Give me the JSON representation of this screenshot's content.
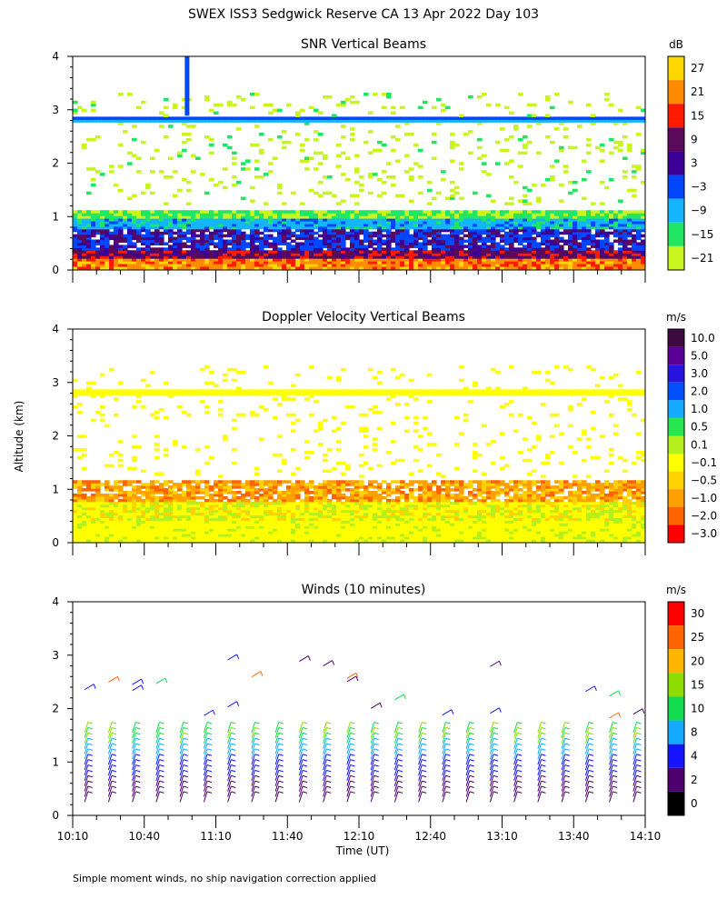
{
  "figure": {
    "title": "SWEX ISS3 Sedgwick Reserve CA  13 Apr 2022 Day 103",
    "ylabel": "Altitude (km)",
    "xlabel": "Time (UT)",
    "footnote": "Simple moment winds, no ship navigation correction applied"
  },
  "chart_data": [
    {
      "type": "heatmap",
      "title": "SNR Vertical Beams",
      "ylim": [
        0,
        4
      ],
      "yticks": [
        "0",
        "1",
        "2",
        "3",
        "4"
      ],
      "xlim": [
        "10:10",
        "14:10"
      ],
      "colorbar": {
        "unit": "dB",
        "labels": [
          "27",
          "21",
          "15",
          "9",
          "3",
          "−3",
          "−9",
          "−15",
          "−21"
        ],
        "colors": [
          "#ffd700",
          "#ff8c00",
          "#ff1a00",
          "#5a0a5a",
          "#3c0096",
          "#0046ff",
          "#14b4ff",
          "#20e664",
          "#c8f51e"
        ]
      },
      "features": [
        {
          "label": "strong return layer",
          "alt_km": 2.8
        },
        {
          "label": "boundary layer",
          "alt_km_range": [
            0,
            1.1
          ]
        }
      ]
    },
    {
      "type": "heatmap",
      "title": "Doppler Velocity Vertical Beams",
      "ylim": [
        0,
        4
      ],
      "yticks": [
        "0",
        "1",
        "2",
        "3",
        "4"
      ],
      "xlim": [
        "10:10",
        "14:10"
      ],
      "colorbar": {
        "unit": "m/s",
        "labels": [
          "10.0",
          "5.0",
          "3.0",
          "2.0",
          "1.0",
          "0.5",
          "0.1",
          "−0.1",
          "−0.5",
          "−1.0",
          "−2.0",
          "−3.0"
        ],
        "colors": [
          "#3c0a3c",
          "#5a0096",
          "#2814dc",
          "#0050ff",
          "#14aaff",
          "#28e650",
          "#b4f01e",
          "#ffff00",
          "#ffd200",
          "#ffa000",
          "#ff6400",
          "#ff0000"
        ]
      }
    },
    {
      "type": "scatter",
      "title": "Winds (10 minutes)",
      "ylim": [
        0,
        4
      ],
      "yticks": [
        "0",
        "1",
        "2",
        "3",
        "4"
      ],
      "x": [
        "10:10",
        "10:40",
        "11:10",
        "11:40",
        "12:10",
        "12:40",
        "13:10",
        "13:40",
        "14:10"
      ],
      "colorbar": {
        "unit": "m/s",
        "labels": [
          "30",
          "25",
          "20",
          "15",
          "10",
          "8",
          "4",
          "2",
          "0"
        ],
        "colors": [
          "#ff0000",
          "#ff6400",
          "#ffb400",
          "#8cdc00",
          "#14dc50",
          "#14aaff",
          "#1414ff",
          "#50006e",
          "#000000"
        ]
      }
    }
  ]
}
